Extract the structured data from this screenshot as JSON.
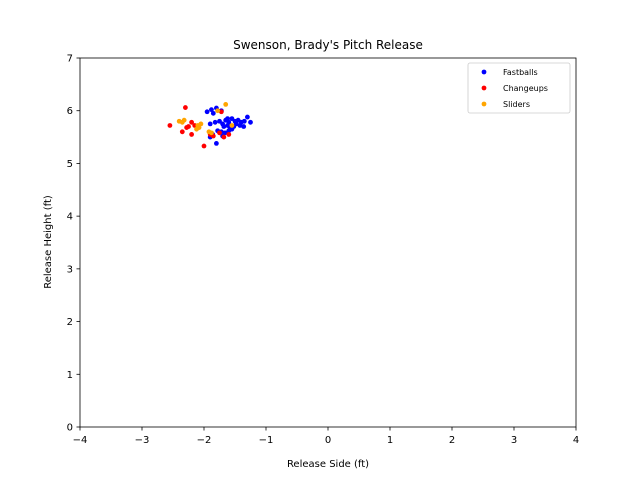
{
  "chart_data": {
    "type": "scatter",
    "title": "Swenson, Brady's Pitch Release",
    "xlabel": "Release Side (ft)",
    "ylabel": "Release Height (ft)",
    "xlim": [
      -4,
      4
    ],
    "ylim": [
      0,
      7
    ],
    "xticks": [
      -4,
      -3,
      -2,
      -1,
      0,
      1,
      2,
      3,
      4
    ],
    "yticks": [
      0,
      1,
      2,
      3,
      4,
      5,
      6,
      7
    ],
    "grid": false,
    "legend": "top-right",
    "series": [
      {
        "name": "Fastballs",
        "color": "#0000ff",
        "points": [
          [
            -1.95,
            5.98
          ],
          [
            -1.88,
            6.02
          ],
          [
            -1.8,
            6.05
          ],
          [
            -1.85,
            5.95
          ],
          [
            -1.72,
            6.0
          ],
          [
            -1.9,
            5.75
          ],
          [
            -1.82,
            5.78
          ],
          [
            -1.75,
            5.8
          ],
          [
            -1.7,
            5.75
          ],
          [
            -1.65,
            5.82
          ],
          [
            -1.6,
            5.78
          ],
          [
            -1.55,
            5.85
          ],
          [
            -1.5,
            5.8
          ],
          [
            -1.45,
            5.82
          ],
          [
            -1.4,
            5.78
          ],
          [
            -1.35,
            5.8
          ],
          [
            -1.3,
            5.88
          ],
          [
            -1.25,
            5.78
          ],
          [
            -1.68,
            5.7
          ],
          [
            -1.62,
            5.72
          ],
          [
            -1.58,
            5.68
          ],
          [
            -1.52,
            5.7
          ],
          [
            -1.48,
            5.75
          ],
          [
            -1.42,
            5.72
          ],
          [
            -1.36,
            5.7
          ],
          [
            -1.78,
            5.62
          ],
          [
            -1.72,
            5.6
          ],
          [
            -1.66,
            5.58
          ],
          [
            -1.6,
            5.62
          ],
          [
            -1.86,
            5.55
          ],
          [
            -1.9,
            5.5
          ],
          [
            -1.8,
            5.38
          ],
          [
            -1.7,
            5.52
          ],
          [
            -1.55,
            5.65
          ],
          [
            -1.62,
            5.85
          ]
        ]
      },
      {
        "name": "Changeups",
        "color": "#ff0000",
        "points": [
          [
            -2.3,
            6.06
          ],
          [
            -2.55,
            5.72
          ],
          [
            -2.35,
            5.6
          ],
          [
            -2.25,
            5.7
          ],
          [
            -2.2,
            5.78
          ],
          [
            -2.15,
            5.72
          ],
          [
            -2.28,
            5.68
          ],
          [
            -2.2,
            5.55
          ],
          [
            -2.0,
            5.33
          ],
          [
            -1.9,
            5.55
          ],
          [
            -1.85,
            5.52
          ],
          [
            -1.75,
            5.58
          ],
          [
            -1.68,
            5.5
          ],
          [
            -1.6,
            5.55
          ],
          [
            -1.72,
            5.98
          ]
        ]
      },
      {
        "name": "Sliders",
        "color": "#ffa500",
        "points": [
          [
            -2.4,
            5.8
          ],
          [
            -2.35,
            5.78
          ],
          [
            -2.32,
            5.82
          ],
          [
            -2.1,
            5.72
          ],
          [
            -2.05,
            5.75
          ],
          [
            -2.08,
            5.68
          ],
          [
            -2.12,
            5.65
          ],
          [
            -1.92,
            5.6
          ],
          [
            -1.88,
            5.58
          ],
          [
            -1.65,
            6.12
          ],
          [
            -1.78,
            6.0
          ],
          [
            -1.55,
            5.72
          ]
        ]
      }
    ]
  }
}
